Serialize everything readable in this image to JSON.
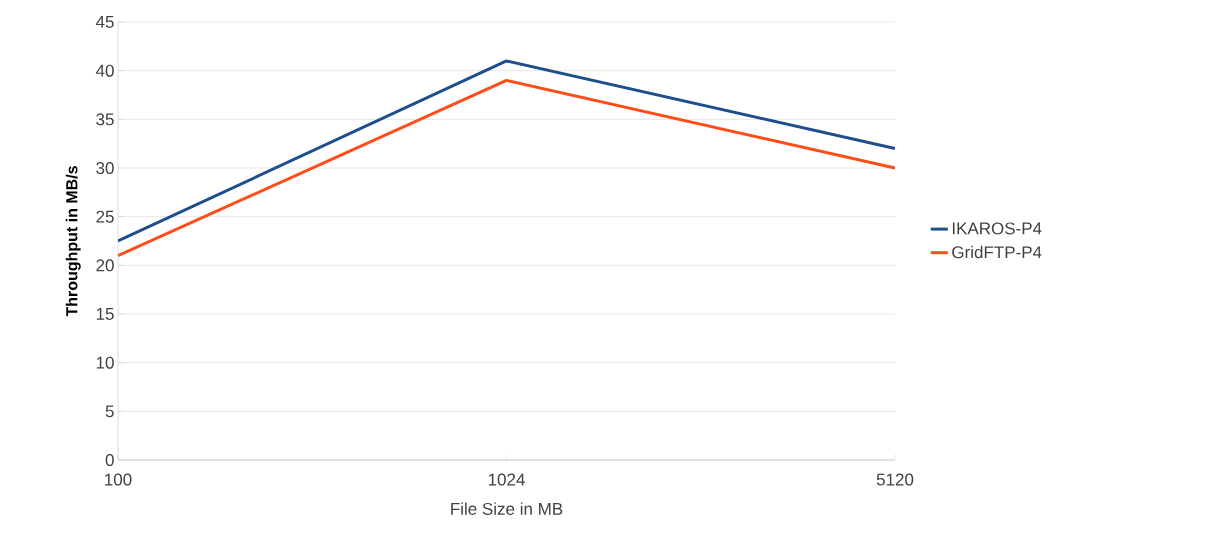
{
  "chart_data": {
    "type": "line",
    "xlabel": "File Size in MB",
    "ylabel": "Throughput in MB/s",
    "categories": [
      "100",
      "1024",
      "5120"
    ],
    "series": [
      {
        "name": "IKAROS-P4",
        "color": "#1f4e8c",
        "values": [
          22.5,
          41,
          32
        ]
      },
      {
        "name": "GridFTP-P4",
        "color": "#ff4d1a",
        "values": [
          21,
          39,
          30
        ]
      }
    ],
    "ylim": [
      0,
      45
    ],
    "yticks": [
      0,
      5,
      10,
      15,
      20,
      25,
      30,
      35,
      40,
      45
    ],
    "grid": "y",
    "legend": "right",
    "marker": "none",
    "line_style": "solid"
  }
}
